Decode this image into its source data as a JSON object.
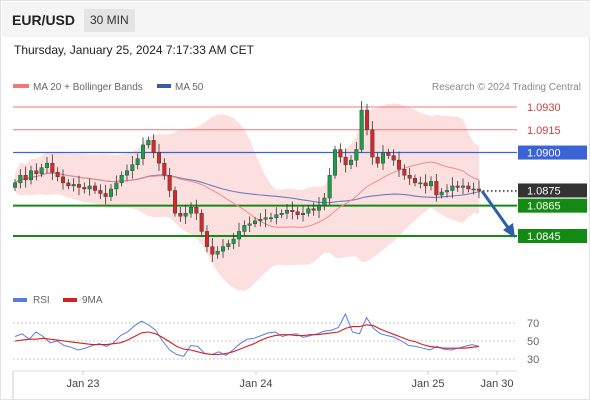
{
  "header": {
    "symbol": "EUR/USD",
    "timeframe": "30 MIN"
  },
  "datetime": "Thursday, January 25, 2024 7:17:33 AM CET",
  "legend": {
    "ma_bb": "MA 20 + Bollinger Bands",
    "ma50": "MA 50",
    "credit": "Research © 2024 Trading Central"
  },
  "rsi_legend": {
    "rsi": "RSI",
    "ma9": "9MA"
  },
  "colors": {
    "resistance": "#f07878",
    "ma50": "#3a63d6",
    "support": "#138a13",
    "current": "#333333",
    "bb_fill": "#fcdada",
    "rsi": "#5b7be0",
    "rsi_ma": "#d42020",
    "bull": "#1a9e4a",
    "bear": "#cf2b2b",
    "arrow": "#2f5fa8"
  },
  "chart_data": [
    {
      "type": "candlestick",
      "y_range": [
        1.0825,
        1.0945
      ],
      "x_labels": [
        "Jan 23",
        "Jan 24",
        "Jan 25",
        "Jan 30"
      ],
      "levels": [
        {
          "value": 1.093,
          "label": "1.0930",
          "kind": "resistance"
        },
        {
          "value": 1.0915,
          "label": "1.0915",
          "kind": "resistance"
        },
        {
          "value": 1.09,
          "label": "1.0900",
          "kind": "pivot"
        },
        {
          "value": 1.0875,
          "label": "1.0875",
          "kind": "current"
        },
        {
          "value": 1.0865,
          "label": "1.0865",
          "kind": "support"
        },
        {
          "value": 1.0845,
          "label": "1.0845",
          "kind": "support"
        }
      ],
      "forecast": "bearish toward 1.0845",
      "close": [
        1.088,
        1.0885,
        1.0882,
        1.0888,
        1.0886,
        1.089,
        1.0893,
        1.0887,
        1.0884,
        1.088,
        1.0878,
        1.0879,
        1.0877,
        1.0876,
        1.0878,
        1.0875,
        1.0873,
        1.0871,
        1.0876,
        1.088,
        1.0885,
        1.0888,
        1.0892,
        1.0896,
        1.0905,
        1.0908,
        1.09,
        1.0893,
        1.0885,
        1.0875,
        1.086,
        1.0858,
        1.086,
        1.0864,
        1.086,
        1.0848,
        1.0838,
        1.0833,
        1.0835,
        1.0838,
        1.084,
        1.0843,
        1.0848,
        1.0852,
        1.0853,
        1.0855,
        1.0856,
        1.0857,
        1.0857,
        1.0859,
        1.086,
        1.0862,
        1.0861,
        1.0859,
        1.086,
        1.0863,
        1.0862,
        1.0865,
        1.087,
        1.0885,
        1.0902,
        1.0897,
        1.0892,
        1.0895,
        1.0902,
        1.0928,
        1.0915,
        1.0897,
        1.0893,
        1.09,
        1.0898,
        1.0895,
        1.0889,
        1.0885,
        1.0883,
        1.088,
        1.088,
        1.0878,
        1.0881,
        1.0872,
        1.0874,
        1.0875,
        1.0878,
        1.0877,
        1.0878,
        1.0876,
        1.0876,
        1.0875
      ]
    },
    {
      "type": "line",
      "name": "RSI",
      "y_ticks": [
        30,
        50,
        70
      ],
      "series": [
        {
          "name": "RSI",
          "values": [
            55,
            58,
            52,
            60,
            55,
            48,
            50,
            45,
            43,
            40,
            42,
            45,
            47,
            44,
            48,
            56,
            60,
            67,
            72,
            68,
            62,
            50,
            40,
            35,
            33,
            45,
            44,
            36,
            35,
            38,
            34,
            40,
            47,
            52,
            53,
            56,
            59,
            60,
            55,
            57,
            58,
            54,
            56,
            58,
            61,
            62,
            65,
            80,
            60,
            58,
            76,
            64,
            58,
            56,
            54,
            50,
            45,
            44,
            42,
            40,
            44,
            41,
            40,
            42,
            44,
            46,
            44
          ]
        },
        {
          "name": "9MA",
          "values": [
            50,
            51,
            52,
            52,
            53,
            52,
            51,
            50,
            49,
            48,
            47,
            46,
            46,
            46,
            47,
            48,
            51,
            55,
            59,
            60,
            58,
            54,
            49,
            44,
            41,
            40,
            38,
            36,
            35,
            35,
            36,
            38,
            41,
            44,
            47,
            51,
            54,
            56,
            57,
            57,
            56,
            56,
            57,
            57,
            58,
            59,
            60,
            64,
            66,
            66,
            68,
            67,
            63,
            60,
            57,
            54,
            51,
            49,
            46,
            44,
            43,
            42,
            42,
            42,
            42,
            43,
            44
          ]
        }
      ]
    }
  ]
}
